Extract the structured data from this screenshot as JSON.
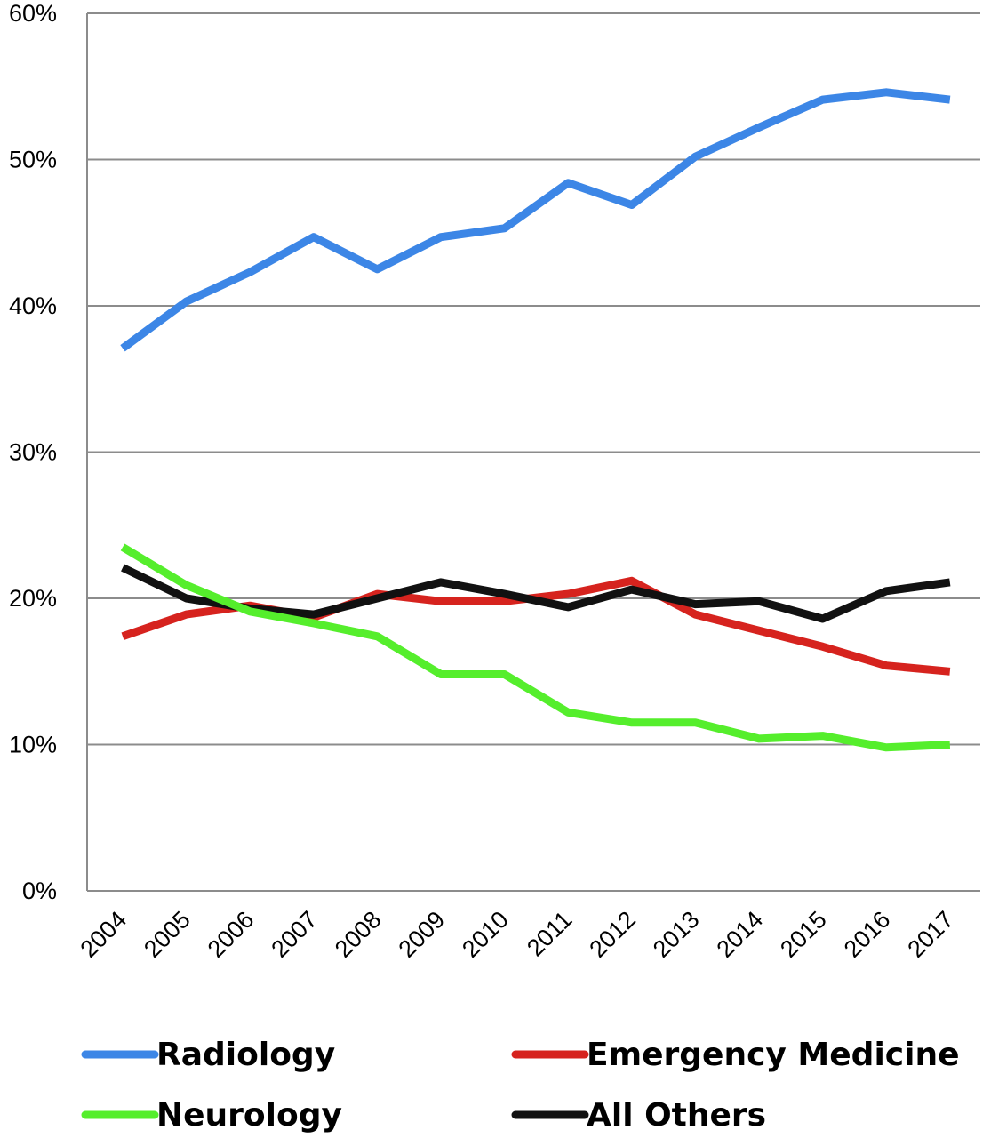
{
  "chart_data": {
    "type": "line",
    "title": "",
    "xlabel": "",
    "ylabel": "",
    "x": [
      "2004",
      "2005",
      "2006",
      "2007",
      "2008",
      "2009",
      "2010",
      "2011",
      "2012",
      "2013",
      "2014",
      "2015",
      "2016",
      "2017"
    ],
    "ylim": [
      0,
      60
    ],
    "yticks": [
      "0%",
      "10%",
      "20%",
      "30%",
      "40%",
      "50%",
      "60%"
    ],
    "grid": true,
    "legend_position": "bottom",
    "series": [
      {
        "name": "Radiology",
        "color": "#3c86e6",
        "values": [
          37.1,
          40.3,
          42.3,
          44.7,
          42.5,
          44.7,
          45.3,
          48.4,
          46.9,
          50.2,
          52.2,
          54.1,
          54.6,
          54.1
        ]
      },
      {
        "name": "Emergency Medicine",
        "color": "#d6231e",
        "values": [
          17.4,
          18.9,
          19.5,
          18.7,
          20.3,
          19.8,
          19.8,
          20.3,
          21.2,
          18.9,
          17.8,
          16.7,
          15.4,
          15.0
        ]
      },
      {
        "name": "Neurology",
        "color": "#55ee2c",
        "values": [
          23.5,
          20.9,
          19.1,
          18.3,
          17.4,
          14.8,
          14.8,
          12.2,
          11.5,
          11.5,
          10.4,
          10.6,
          9.8,
          10.0
        ]
      },
      {
        "name": "All Others",
        "color": "#111111",
        "values": [
          22.1,
          20.0,
          19.3,
          18.9,
          20.0,
          21.1,
          20.3,
          19.4,
          20.6,
          19.6,
          19.8,
          18.6,
          20.5,
          21.1
        ]
      }
    ]
  }
}
